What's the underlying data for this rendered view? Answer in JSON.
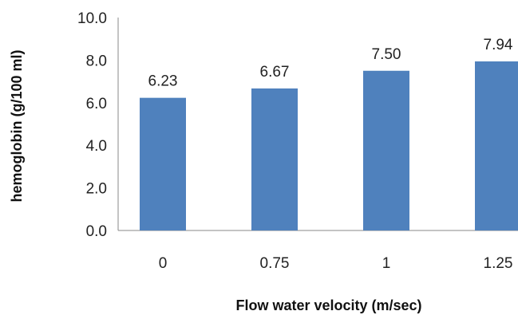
{
  "chart_data": {
    "type": "bar",
    "categories": [
      "0",
      "0.75",
      "1",
      "1.25"
    ],
    "values": [
      6.23,
      6.67,
      7.5,
      7.94
    ],
    "data_labels": [
      "6.23",
      "6.67",
      "7.50",
      "7.94"
    ],
    "title": "",
    "xlabel": "Flow water velocity (m/sec)",
    "ylabel": "hemoglobin (g/100 ml)",
    "ylim": [
      0,
      10
    ],
    "yticks": [
      "0.0",
      "2.0",
      "4.0",
      "6.0",
      "8.0",
      "10.0"
    ],
    "grid": false,
    "legend": "none",
    "bar_color": "#4F81BD"
  }
}
